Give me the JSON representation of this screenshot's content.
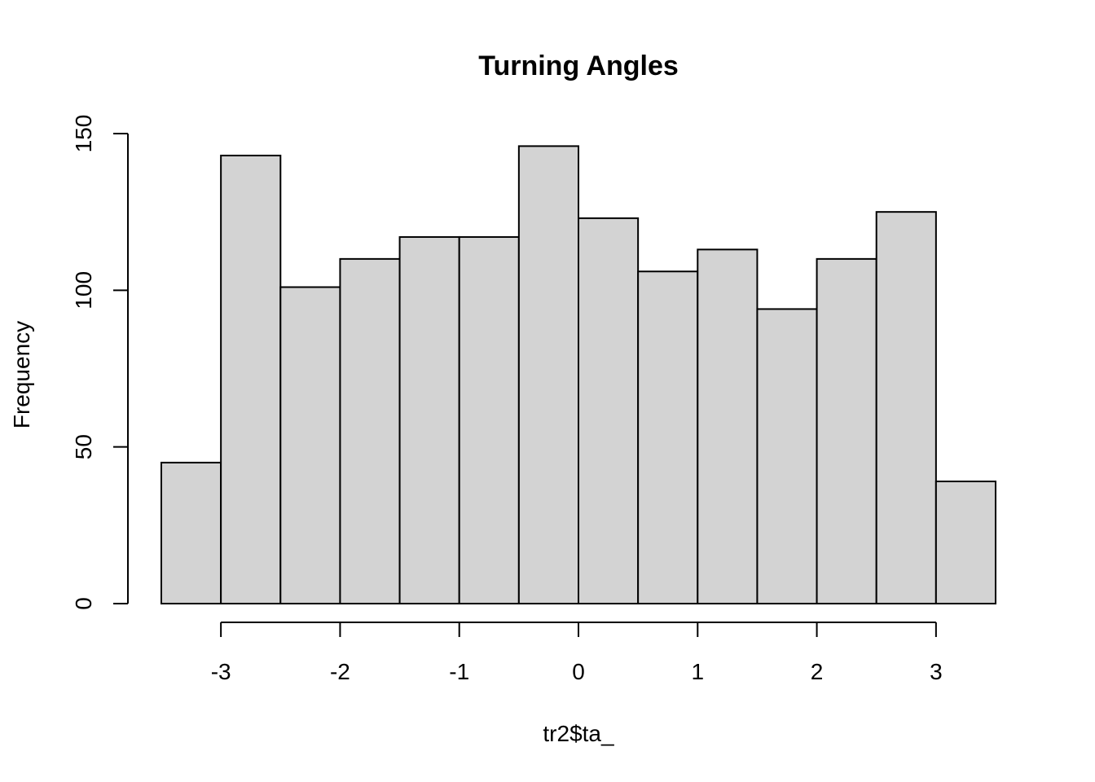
{
  "chart_data": {
    "type": "bar",
    "subtype": "histogram",
    "title": "Turning Angles",
    "xlabel": "tr2$ta_",
    "ylabel": "Frequency",
    "bin_edges": [
      -3.5,
      -3,
      -2.5,
      -2,
      -1.5,
      -1,
      -0.5,
      0,
      0.5,
      1,
      1.5,
      2,
      2.5,
      3,
      3.5
    ],
    "values": [
      45,
      143,
      101,
      110,
      117,
      117,
      146,
      123,
      106,
      113,
      94,
      110,
      125,
      39
    ],
    "xlim": [
      -3.5,
      3.5
    ],
    "ylim": [
      0,
      150
    ],
    "x_ticks": [
      -3,
      -2,
      -1,
      0,
      1,
      2,
      3
    ],
    "x_tick_labels": [
      "-3",
      "-2",
      "-1",
      "0",
      "1",
      "2",
      "3"
    ],
    "y_ticks": [
      0,
      50,
      100,
      150
    ],
    "y_tick_labels": [
      "0",
      "50",
      "100",
      "150"
    ],
    "grid": false,
    "legend": "none",
    "bar_fill": "#d3d3d3",
    "bar_stroke": "#000000"
  }
}
